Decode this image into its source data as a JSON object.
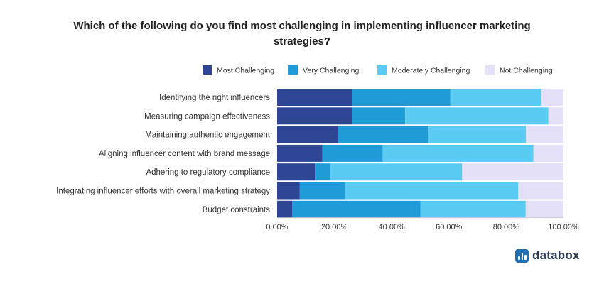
{
  "chart_data": {
    "type": "bar",
    "orientation": "horizontal",
    "stacked": true,
    "title_lines": [
      "Which of the following do you find most challenging in implementing influencer marketing",
      "strategies?"
    ],
    "categories": [
      "Identifying the right influencers",
      "Measuring campaign effectiveness",
      "Maintaining authentic engagement",
      "Aligning influencer content with brand message",
      "Adhering to regulatory compliance",
      "Integrating influencer efforts with overall marketing strategy",
      "Budget constraints"
    ],
    "series": [
      {
        "name": "Most Challenging",
        "color": "#2e4593",
        "values": [
          26.3,
          26.3,
          21.1,
          15.8,
          13.2,
          7.9,
          5.3
        ]
      },
      {
        "name": "Very Challenging",
        "color": "#1f9bd7",
        "values": [
          34.2,
          18.4,
          31.6,
          21.1,
          5.3,
          15.8,
          44.7
        ]
      },
      {
        "name": "Moderately Challenging",
        "color": "#5acbf2",
        "values": [
          31.6,
          50.0,
          34.2,
          52.6,
          46.1,
          60.5,
          36.8
        ]
      },
      {
        "name": "Not Challenging",
        "color": "#e3e0f7",
        "values": [
          7.9,
          5.3,
          13.1,
          10.5,
          35.4,
          15.8,
          13.2
        ]
      }
    ],
    "xlim": [
      0,
      100
    ],
    "xticks": [
      "0.00%",
      "20.00%",
      "40.00%",
      "60.00%",
      "80.00%",
      "100.00%"
    ],
    "xtick_values": [
      0,
      20,
      40,
      60,
      80,
      100
    ],
    "legend_position": "top-right",
    "grid": false
  },
  "branding": {
    "logo_text": "databox",
    "logo_icon": "bar-chart-icon"
  }
}
